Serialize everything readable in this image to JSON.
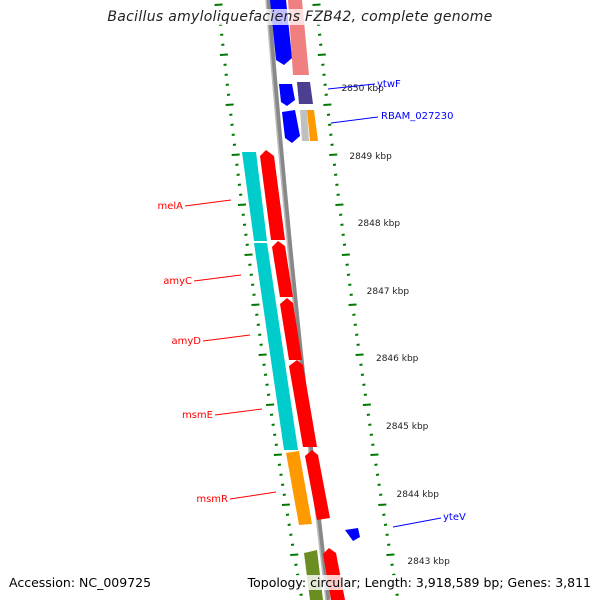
{
  "title": "Bacillus amyloliquefaciens FZB42, complete genome",
  "footer": {
    "accession": "Accession: NC_009725",
    "summary": "Topology: circular; Length: 3,918,589 bp; Genes: 3,811"
  },
  "scale_labels": [
    "2850 kbp",
    "2849 kbp",
    "2848 kbp",
    "2847 kbp",
    "2846 kbp",
    "2845 kbp",
    "2844 kbp",
    "2843 kbp"
  ],
  "gene_labels": {
    "reverse": [
      "melA",
      "amyC",
      "amyD",
      "msmE",
      "msmR"
    ],
    "forward": [
      "ytwF",
      "RBAM_027230",
      "yteV"
    ]
  },
  "colors": {
    "forward": "#0000ff",
    "reverse": "#ff0000",
    "cyan": "#00cccc",
    "orange": "#ff9900",
    "tick": "#007a00",
    "backbone": "#808080"
  }
}
